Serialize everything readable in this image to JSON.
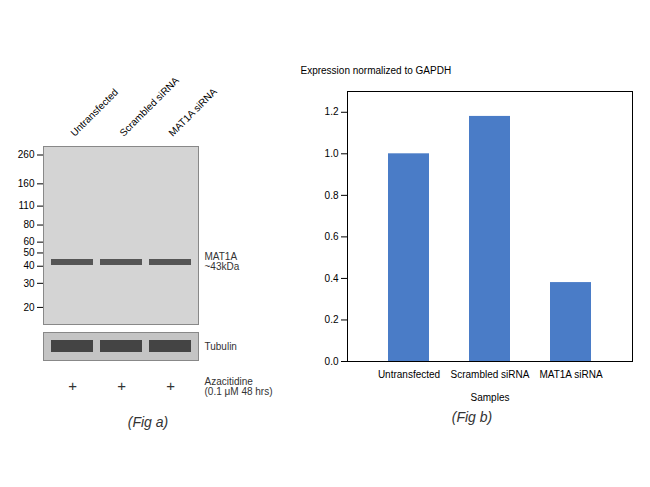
{
  "chart_data": [
    {
      "type": "western_blot",
      "caption": "(Fig a)",
      "categories": [
        "Untransfected",
        "Scrambled siRNA",
        "MAT1A siRNA"
      ],
      "ylim": [
        15,
        300
      ],
      "yticks": [
        260,
        160,
        110,
        80,
        60,
        50,
        40,
        30,
        20
      ],
      "log": "y",
      "band": {
        "name": "MAT1A",
        "label": "~43kDa",
        "value": 43,
        "color": "#555555"
      },
      "loading_control": {
        "name": "Tubulin",
        "color": "#444444"
      },
      "treatment": {
        "name": "Azacitidine",
        "label": "(0.1 μM 48 hrs)",
        "lanes": [
          "+",
          "+",
          "+"
        ]
      }
    },
    {
      "type": "bar",
      "caption": "(Fig b)",
      "categories": [
        "Untransfected",
        "Scrambled siRNA",
        "MAT1A siRNA"
      ],
      "values": [
        1.0,
        1.18,
        0.38
      ],
      "color": "#4a7cc7",
      "xlabel": "Samples",
      "ylabel": "Expression normalized to GAPDH",
      "ylim": [
        0,
        1.3
      ],
      "yticks": [
        {
          "value": 0,
          "label": "0.0"
        },
        0.2,
        0.4,
        0.6,
        0.8,
        {
          "value": 1.0,
          "label": "1.0"
        },
        1.2
      ],
      "grid": false
    }
  ]
}
